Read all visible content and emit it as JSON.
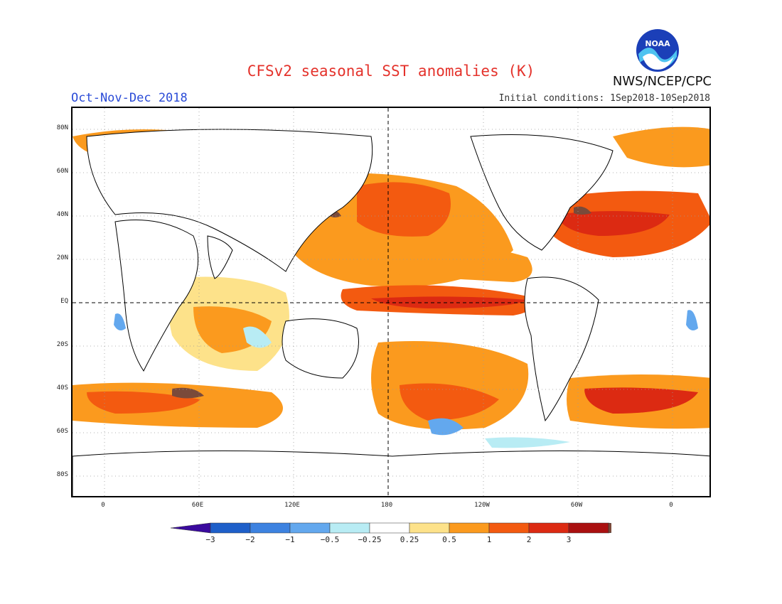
{
  "header": {
    "title": "CFSv2 seasonal SST anomalies (K)",
    "period": "Oct-Nov-Dec 2018",
    "initial_conditions": "Initial conditions: 1Sep2018-10Sep2018",
    "agency": "NWS/NCEP/CPC",
    "logo_text": "NOAA"
  },
  "axes": {
    "lat_labels": [
      "80N",
      "60N",
      "40N",
      "20N",
      "EQ",
      "20S",
      "40S",
      "60S",
      "80S"
    ],
    "lon_labels": [
      "0",
      "60E",
      "120E",
      "180",
      "120W",
      "60W",
      "0"
    ]
  },
  "colorbar": {
    "labels": [
      "-3",
      "-2",
      "-1",
      "-0.5",
      "-0.25",
      "0.25",
      "0.5",
      "1",
      "2",
      "3"
    ],
    "colors": [
      "#3a0a9e",
      "#1e5fc9",
      "#3d82e0",
      "#63a8ee",
      "#b8ecf4",
      "#ffffff",
      "#fde28a",
      "#fb9a1e",
      "#f35a10",
      "#dc2a12",
      "#aa1010",
      "#7a4a3a"
    ]
  },
  "colors": {
    "land_outline": "#000000",
    "grid": "#9a9a9a",
    "dashed_ref": "#000000"
  }
}
